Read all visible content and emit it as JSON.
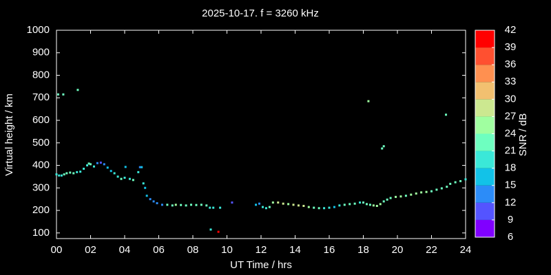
{
  "chart_data": {
    "type": "scatter",
    "title": "2025-10-17. f = 3260 kHz",
    "xlabel": "UT Time / hrs",
    "ylabel": "Virtual height / km",
    "xlim": [
      0,
      24
    ],
    "xticks": [
      {
        "value": 0,
        "label": "00"
      },
      {
        "value": 2,
        "label": "02"
      },
      {
        "value": 4,
        "label": "04"
      },
      {
        "value": 6,
        "label": "06"
      },
      {
        "value": 8,
        "label": "08"
      },
      {
        "value": 10,
        "label": "10"
      },
      {
        "value": 12,
        "label": "12"
      },
      {
        "value": 14,
        "label": "14"
      },
      {
        "value": 16,
        "label": "16"
      },
      {
        "value": 18,
        "label": "18"
      },
      {
        "value": 20,
        "label": "20"
      },
      {
        "value": 22,
        "label": "22"
      },
      {
        "value": 24,
        "label": "24"
      }
    ],
    "ylim": [
      75,
      1000
    ],
    "yticks": [
      100,
      200,
      300,
      400,
      500,
      600,
      700,
      800,
      900,
      1000
    ],
    "x": [
      0.0,
      0.15,
      0.3,
      0.45,
      0.1,
      0.4,
      1.25,
      0.6,
      0.8,
      1.0,
      1.2,
      1.4,
      1.6,
      1.8,
      1.9,
      2.0,
      2.2,
      2.4,
      2.6,
      2.8,
      3.0,
      3.2,
      3.4,
      3.6,
      3.8,
      4.0,
      4.05,
      4.3,
      4.5,
      4.8,
      4.9,
      5.0,
      5.1,
      5.2,
      5.3,
      5.5,
      5.7,
      5.9,
      6.2,
      6.5,
      6.8,
      7.0,
      7.3,
      7.6,
      7.9,
      8.2,
      8.5,
      8.8,
      9.0,
      9.2,
      9.6,
      9.05,
      9.5,
      10.3,
      11.7,
      11.9,
      12.1,
      12.3,
      12.5,
      12.7,
      13.0,
      13.3,
      13.6,
      13.9,
      14.2,
      14.5,
      14.8,
      15.1,
      15.4,
      15.7,
      16.0,
      16.3,
      16.6,
      16.9,
      17.2,
      17.5,
      17.8,
      18.0,
      18.2,
      18.4,
      18.6,
      18.8,
      19.0,
      19.2,
      19.4,
      19.6,
      19.9,
      20.2,
      20.5,
      20.8,
      21.1,
      21.4,
      21.7,
      22.0,
      22.3,
      22.6,
      22.9,
      23.1,
      23.4,
      23.7,
      24.0,
      18.3,
      19.1,
      19.2,
      22.85
    ],
    "values": [
      360,
      355,
      355,
      360,
      715,
      715,
      735,
      365,
      368,
      365,
      370,
      372,
      385,
      400,
      408,
      405,
      395,
      410,
      412,
      405,
      390,
      375,
      365,
      350,
      340,
      345,
      393,
      340,
      335,
      370,
      392,
      392,
      320,
      300,
      265,
      250,
      240,
      232,
      225,
      225,
      222,
      225,
      224,
      222,
      225,
      224,
      225,
      222,
      212,
      212,
      212,
      115,
      105,
      235,
      225,
      230,
      215,
      210,
      215,
      235,
      235,
      230,
      228,
      225,
      222,
      220,
      215,
      212,
      210,
      210,
      212,
      215,
      222,
      225,
      228,
      230,
      235,
      235,
      228,
      225,
      222,
      220,
      228,
      240,
      248,
      255,
      260,
      262,
      265,
      270,
      275,
      280,
      282,
      285,
      292,
      298,
      305,
      318,
      325,
      330,
      338,
      685,
      475,
      485,
      625
    ],
    "snr": [
      20,
      20,
      19,
      21,
      22,
      22,
      22,
      21,
      22,
      22,
      20,
      19,
      18,
      20,
      22,
      21,
      19,
      12,
      10,
      13,
      15,
      17,
      19,
      20,
      21,
      19,
      15,
      20,
      21,
      19,
      14,
      15,
      18,
      17,
      15,
      13,
      14,
      12,
      13,
      21,
      22,
      24,
      23,
      22,
      21,
      22,
      22,
      21,
      19,
      18,
      20,
      20,
      40,
      11,
      16,
      13,
      20,
      19,
      21,
      25,
      27,
      28,
      26,
      27,
      28,
      27,
      24,
      22,
      21,
      20,
      19,
      17,
      20,
      21,
      22,
      21,
      20,
      22,
      23,
      22,
      24,
      25,
      24,
      23,
      22,
      23,
      24,
      25,
      23,
      24,
      26,
      25,
      24,
      22,
      23,
      22,
      21,
      21,
      22,
      21,
      20,
      24,
      22,
      22,
      21
    ],
    "colorbar": {
      "label": "SNR / dB",
      "lim": [
        6,
        42
      ],
      "ticks": [
        6,
        9,
        12,
        15,
        18,
        21,
        24,
        27,
        30,
        33,
        36,
        39,
        42
      ],
      "colors": [
        "#8000ff",
        "#5454ff",
        "#2c8cf8",
        "#12c2e8",
        "#3ae8d8",
        "#6effc0",
        "#a0ffa0",
        "#cce890",
        "#f2c070",
        "#ff9050",
        "#ff5030",
        "#ff0000"
      ]
    }
  }
}
